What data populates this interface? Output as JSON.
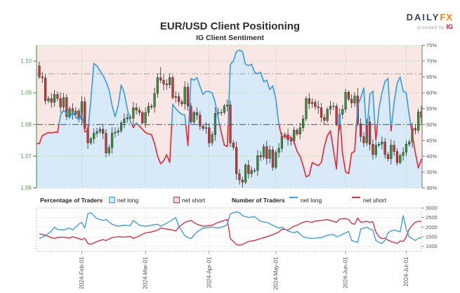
{
  "header": {
    "title": "EUR/USD Client Positioning",
    "subtitle": "IG Client Sentiment",
    "logo": {
      "daily": "DAILY",
      "fx": "FX",
      "provided": "provided by",
      "ig": "IG"
    }
  },
  "legend": {
    "pct_title": "Percentage of Traders",
    "pct_long": "net long",
    "pct_short": "net short",
    "num_title": "Number of Traders",
    "num_long": "net long",
    "num_short": "net short"
  },
  "colors": {
    "net_long_line": "#3e9fdf",
    "net_short_line": "#e12f3f",
    "fill_above": "#f8e7e5",
    "fill_below": "#d8eaf7",
    "candle_up": "#3a8f3f",
    "candle_down": "#cc3333",
    "grid_green": "#aecfa4",
    "price_label_green": "#4d9a4d",
    "axis_gray": "#555555",
    "ref_50": "#4a4a4a",
    "ref_66": "#a0a0a0"
  },
  "chart_data": [
    {
      "type": "candlestick+line",
      "title": "IG Client Sentiment",
      "price_axis": {
        "side": "left",
        "ticks": [
          "1.06",
          "1.07",
          "1.08",
          "1.09",
          "1.10"
        ],
        "range": [
          1.06,
          1.105
        ]
      },
      "pct_axis": {
        "side": "right",
        "ticks": [
          "30%",
          "35%",
          "40%",
          "45%",
          "50%",
          "55%",
          "60%",
          "65%",
          "70%",
          "75%"
        ],
        "range": [
          30,
          75
        ]
      },
      "reference_lines_pct": [
        50,
        66
      ],
      "x_ticks": [
        {
          "date": "02-01",
          "label": "2024-Feb-01"
        },
        {
          "date": "03-01",
          "label": "2024-Mar-01"
        },
        {
          "date": "04-01",
          "label": "2024-Apr-01"
        },
        {
          "date": "05-01",
          "label": "2024-May-01"
        },
        {
          "date": "06-01",
          "label": "2024-Jun-01"
        },
        {
          "date": "07-01",
          "label": "2024-Jul-01"
        }
      ],
      "note": "days = [2024 date, close price, net-long %]. net short % = 100 - net long %. Line drawn blue when net-long >= 50%, red when < 50%; light blue area fills below the line, pink above.",
      "first_open": 1.0985,
      "wick_overrides": {
        "01-12": {
          "h": 1.0998
        },
        "02-05": {
          "l": 1.0723
        },
        "03-08": {
          "h": 1.0981
        },
        "04-16": {
          "l": 1.0601
        },
        "06-07": {
          "h": 1.0916
        }
      },
      "days": [
        [
          "01-12",
          1.095,
          44.0
        ],
        [
          "01-15",
          1.0947,
          46.5
        ],
        [
          "01-16",
          1.0875,
          47.0
        ],
        [
          "01-17",
          1.0882,
          47.5
        ],
        [
          "01-18",
          1.087,
          47.3
        ],
        [
          "01-19",
          1.0895,
          47.6
        ],
        [
          "01-22",
          1.0882,
          47.5
        ],
        [
          "01-23",
          1.0855,
          53.0
        ],
        [
          "01-24",
          1.0885,
          54.5
        ],
        [
          "01-25",
          1.0825,
          53.5
        ],
        [
          "01-26",
          1.085,
          52.0
        ],
        [
          "01-29",
          1.0832,
          54.0
        ],
        [
          "01-30",
          1.0843,
          52.5
        ],
        [
          "01-31",
          1.0816,
          51.5
        ],
        [
          "02-01",
          1.0872,
          53.5
        ],
        [
          "02-02",
          1.0788,
          48.0
        ],
        [
          "02-05",
          1.0742,
          47.5
        ],
        [
          "02-06",
          1.0755,
          58.0
        ],
        [
          "02-07",
          1.0772,
          69.3
        ],
        [
          "02-08",
          1.0778,
          68.5
        ],
        [
          "02-09",
          1.0785,
          67.0
        ],
        [
          "02-12",
          1.0772,
          65.5
        ],
        [
          "02-13",
          1.071,
          63.5
        ],
        [
          "02-14",
          1.0727,
          61.0
        ],
        [
          "02-15",
          1.0773,
          56.0
        ],
        [
          "02-16",
          1.0776,
          52.5
        ],
        [
          "02-19",
          1.078,
          56.0
        ],
        [
          "02-20",
          1.0805,
          62.5
        ],
        [
          "02-21",
          1.0818,
          60.0
        ],
        [
          "02-22",
          1.0822,
          55.0
        ],
        [
          "02-23",
          1.082,
          51.0
        ],
        [
          "02-26",
          1.0853,
          49.0
        ],
        [
          "02-27",
          1.0845,
          50.5
        ],
        [
          "02-28",
          1.0838,
          49.5
        ],
        [
          "02-29",
          1.0805,
          48.5
        ],
        [
          "03-01",
          1.0838,
          47.5
        ],
        [
          "03-04",
          1.0858,
          47.0
        ],
        [
          "03-05",
          1.0855,
          46.8
        ],
        [
          "03-06",
          1.0898,
          44.0
        ],
        [
          "03-07",
          1.0948,
          40.0
        ],
        [
          "03-08",
          1.094,
          37.6
        ],
        [
          "03-11",
          1.0928,
          38.5
        ],
        [
          "03-12",
          1.0925,
          40.5
        ],
        [
          "03-13",
          1.0948,
          38.0
        ],
        [
          "03-14",
          1.0885,
          56.4
        ],
        [
          "03-15",
          1.0888,
          55.0
        ],
        [
          "03-18",
          1.0872,
          54.0
        ],
        [
          "03-19",
          1.0865,
          53.2
        ],
        [
          "03-20",
          1.0918,
          53.0
        ],
        [
          "03-21",
          1.0858,
          43.3
        ],
        [
          "03-22",
          1.0808,
          64.5
        ],
        [
          "03-25",
          1.0838,
          64.0
        ],
        [
          "03-26",
          1.083,
          64.8
        ],
        [
          "03-27",
          1.0795,
          62.0
        ],
        [
          "03-28",
          1.0788,
          59.5
        ],
        [
          "03-29",
          1.079,
          60.5
        ],
        [
          "04-01",
          1.0742,
          60.4
        ],
        [
          "04-02",
          1.0768,
          60.0
        ],
        [
          "04-03",
          1.0835,
          57.0
        ],
        [
          "04-04",
          1.0838,
          52.0
        ],
        [
          "04-05",
          1.0838,
          47.5
        ],
        [
          "04-08",
          1.0858,
          43.5
        ],
        [
          "04-09",
          1.0862,
          43.0
        ],
        [
          "04-10",
          1.0742,
          69.0
        ],
        [
          "04-11",
          1.0728,
          70.0
        ],
        [
          "04-12",
          1.0645,
          73.0
        ],
        [
          "04-15",
          1.0625,
          73.5
        ],
        [
          "04-16",
          1.0618,
          73.0
        ],
        [
          "04-17",
          1.0672,
          69.0
        ],
        [
          "04-18",
          1.0645,
          68.6
        ],
        [
          "04-19",
          1.0655,
          69.0
        ],
        [
          "04-22",
          1.0655,
          66.5
        ],
        [
          "04-23",
          1.0702,
          66.0
        ],
        [
          "04-24",
          1.0698,
          66.5
        ],
        [
          "04-25",
          1.073,
          63.5
        ],
        [
          "04-26",
          1.0693,
          64.0
        ],
        [
          "04-29",
          1.072,
          61.0
        ],
        [
          "04-30",
          1.0665,
          62.2
        ],
        [
          "05-01",
          1.0712,
          58.0
        ],
        [
          "05-02",
          1.0725,
          50.0
        ],
        [
          "05-03",
          1.0762,
          46.0
        ],
        [
          "05-06",
          1.0768,
          46.5
        ],
        [
          "05-07",
          1.0752,
          45.5
        ],
        [
          "05-08",
          1.0748,
          46.0
        ],
        [
          "05-09",
          1.0782,
          44.5
        ],
        [
          "05-10",
          1.077,
          41.5
        ],
        [
          "05-13",
          1.079,
          40.0
        ],
        [
          "05-14",
          1.0818,
          37.0
        ],
        [
          "05-15",
          1.0882,
          33.5
        ],
        [
          "05-16",
          1.0866,
          34.0
        ],
        [
          "05-17",
          1.087,
          38.0
        ],
        [
          "05-20",
          1.0856,
          37.5
        ],
        [
          "05-21",
          1.0853,
          37.0
        ],
        [
          "05-22",
          1.0822,
          38.0
        ],
        [
          "05-23",
          1.0813,
          43.0
        ],
        [
          "05-24",
          1.0848,
          46.5
        ],
        [
          "05-27",
          1.0858,
          48.0
        ],
        [
          "05-28",
          1.0858,
          42.0
        ],
        [
          "05-29",
          1.0802,
          36.0
        ],
        [
          "05-30",
          1.0832,
          54.0
        ],
        [
          "05-31",
          1.0848,
          41.0
        ],
        [
          "06-03",
          1.0902,
          35.0
        ],
        [
          "06-04",
          1.088,
          34.5
        ],
        [
          "06-05",
          1.0868,
          41.0
        ],
        [
          "06-06",
          1.089,
          41.5
        ],
        [
          "06-07",
          1.0802,
          56.0
        ],
        [
          "06-10",
          1.0762,
          58.5
        ],
        [
          "06-11",
          1.0742,
          61.5
        ],
        [
          "06-12",
          1.0808,
          46.5
        ],
        [
          "06-13",
          1.0738,
          59.5
        ],
        [
          "06-14",
          1.0705,
          60.5
        ],
        [
          "06-17",
          1.0735,
          45.0
        ],
        [
          "06-18",
          1.0738,
          55.0
        ],
        [
          "06-19",
          1.0745,
          60.0
        ],
        [
          "06-20",
          1.0705,
          63.6
        ],
        [
          "06-21",
          1.0692,
          64.5
        ],
        [
          "06-24",
          1.0735,
          48.0
        ],
        [
          "06-25",
          1.0715,
          57.0
        ],
        [
          "06-26",
          1.068,
          63.0
        ],
        [
          "06-27",
          1.0702,
          65.0
        ],
        [
          "06-28",
          1.0712,
          60.5
        ],
        [
          "07-01",
          1.0738,
          60.0
        ],
        [
          "07-02",
          1.0745,
          53.0
        ],
        [
          "07-03",
          1.0788,
          47.0
        ],
        [
          "07-04",
          1.0782,
          41.0
        ],
        [
          "07-05",
          1.084,
          36.3
        ],
        [
          "07-08",
          1.0822,
          39.0
        ]
      ]
    },
    {
      "type": "line",
      "count_axis": {
        "side": "right",
        "ticks": [
          "1000",
          "1500",
          "2000",
          "2500",
          "3000"
        ],
        "range": [
          900,
          3050
        ]
      },
      "series_names": [
        "net long",
        "net short"
      ],
      "note": "points = [2024 date, traders net-long count, traders net-short count]",
      "points": [
        [
          "01-12",
          1400,
          1650
        ],
        [
          "01-16",
          1550,
          1580
        ],
        [
          "01-18",
          1800,
          1450
        ],
        [
          "01-19",
          2000,
          1400
        ],
        [
          "01-22",
          1880,
          1460
        ],
        [
          "01-24",
          1850,
          1480
        ],
        [
          "01-26",
          1950,
          1430
        ],
        [
          "01-29",
          1850,
          1500
        ],
        [
          "01-31",
          2150,
          1400
        ],
        [
          "02-01",
          2250,
          1350
        ],
        [
          "02-02",
          1950,
          1420
        ],
        [
          "02-05",
          2700,
          1150
        ],
        [
          "02-06",
          2750,
          1100
        ],
        [
          "02-08",
          2450,
          1250
        ],
        [
          "02-12",
          2350,
          1350
        ],
        [
          "02-13",
          2400,
          1300
        ],
        [
          "02-15",
          2150,
          1450
        ],
        [
          "02-19",
          2050,
          1500
        ],
        [
          "02-21",
          2100,
          1480
        ],
        [
          "02-23",
          2080,
          1520
        ],
        [
          "02-26",
          2350,
          1400
        ],
        [
          "02-28",
          2100,
          1550
        ],
        [
          "03-01",
          2050,
          1700
        ],
        [
          "03-05",
          2100,
          1750
        ],
        [
          "03-07",
          2150,
          1850
        ],
        [
          "03-08",
          2050,
          1950
        ],
        [
          "03-12",
          2200,
          1900
        ],
        [
          "03-14",
          2400,
          1850
        ],
        [
          "03-15",
          2500,
          1800
        ],
        [
          "03-18",
          2050,
          2000
        ],
        [
          "03-20",
          1550,
          2250
        ],
        [
          "03-21",
          1450,
          2300
        ],
        [
          "03-22",
          1400,
          2350
        ],
        [
          "03-26",
          1750,
          2150
        ],
        [
          "03-28",
          1950,
          2050
        ],
        [
          "04-02",
          2000,
          2100
        ],
        [
          "04-04",
          1950,
          2250
        ],
        [
          "04-08",
          2050,
          2350
        ],
        [
          "04-09",
          2150,
          2400
        ],
        [
          "04-10",
          2700,
          1400
        ],
        [
          "04-12",
          2800,
          1100
        ],
        [
          "04-15",
          2750,
          1050
        ],
        [
          "04-16",
          2600,
          1100
        ],
        [
          "04-18",
          2500,
          1250
        ],
        [
          "04-22",
          2550,
          1300
        ],
        [
          "04-24",
          2300,
          1400
        ],
        [
          "04-26",
          2250,
          1500
        ],
        [
          "04-30",
          2100,
          1600
        ],
        [
          "05-02",
          1950,
          1750
        ],
        [
          "05-03",
          2000,
          1900
        ],
        [
          "05-07",
          1800,
          1850
        ],
        [
          "05-09",
          1700,
          2050
        ],
        [
          "05-10",
          1780,
          2100
        ],
        [
          "05-14",
          1500,
          2250
        ],
        [
          "05-15",
          1450,
          2300
        ],
        [
          "05-17",
          1400,
          2250
        ],
        [
          "05-20",
          1430,
          2320
        ],
        [
          "05-22",
          1450,
          2350
        ],
        [
          "05-24",
          1580,
          2400
        ],
        [
          "05-28",
          1620,
          2300
        ],
        [
          "05-29",
          1500,
          2250
        ],
        [
          "05-30",
          1550,
          2420
        ],
        [
          "06-03",
          1700,
          2450
        ],
        [
          "06-04",
          1780,
          2400
        ],
        [
          "06-05",
          1300,
          2200
        ],
        [
          "06-06",
          1250,
          2150
        ],
        [
          "06-07",
          1200,
          2480
        ],
        [
          "06-10",
          1900,
          2250
        ],
        [
          "06-12",
          2000,
          2300
        ],
        [
          "06-13",
          1900,
          2250
        ],
        [
          "06-14",
          1850,
          2280
        ],
        [
          "06-17",
          1300,
          1750
        ],
        [
          "06-18",
          1200,
          1500
        ],
        [
          "06-19",
          1150,
          1400
        ],
        [
          "06-20",
          1300,
          1420
        ],
        [
          "06-21",
          1700,
          1320
        ],
        [
          "06-24",
          1800,
          1250
        ],
        [
          "06-25",
          1850,
          1200
        ],
        [
          "06-26",
          1800,
          1150
        ],
        [
          "06-27",
          1750,
          1280
        ],
        [
          "06-28",
          2600,
          1250
        ],
        [
          "07-01",
          1900,
          1480
        ],
        [
          "07-02",
          1500,
          1900
        ],
        [
          "07-03",
          1400,
          2100
        ],
        [
          "07-04",
          1300,
          2250
        ],
        [
          "07-05",
          1420,
          2300
        ],
        [
          "07-08",
          1450,
          2300
        ]
      ]
    }
  ]
}
